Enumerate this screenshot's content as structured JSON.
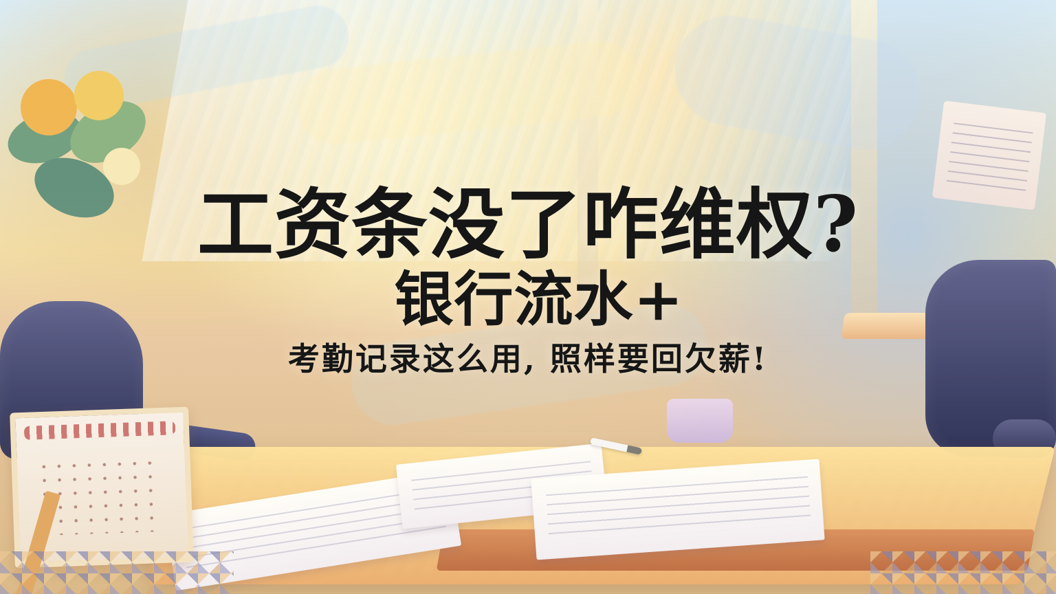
{
  "headline": {
    "line_1": "工资条没了咋维权?",
    "line_2": "银行流水+",
    "line_3": "考勤记录这么用, 照样要回欠薪!"
  },
  "palette": {
    "accent_dark": "#161616",
    "warm_background": "#f3dda3",
    "desk_color": "#eaa967",
    "chair_color": "#34375f",
    "calendar_color": "#f8f0e6"
  },
  "icons": {
    "calendar": "calendar-icon",
    "pen": "pen-icon",
    "chair": "chair-icon"
  }
}
